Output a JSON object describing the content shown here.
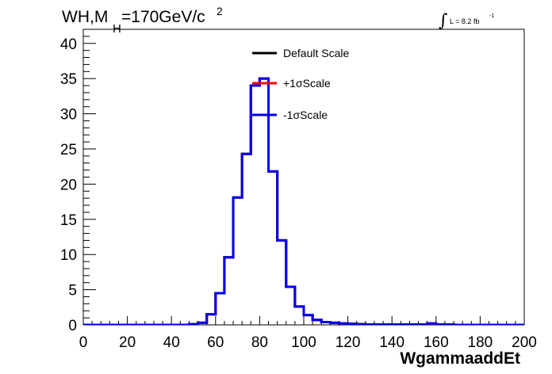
{
  "plot": {
    "title_main": "WH,M",
    "title_sub": "H",
    "title_rest": "=170GeV/c",
    "title_sup": "2",
    "lumi_integral": "∫",
    "lumi_text": "L = 8.2 fb",
    "lumi_sup": "-1"
  },
  "chart_data": {
    "type": "line",
    "style": "histogram-step",
    "title": "WH,MH=170GeV/c2",
    "xlabel": "WgammaaddEt",
    "ylabel": "",
    "xlim": [
      0,
      200
    ],
    "ylim": [
      0,
      42
    ],
    "x_ticks": [
      0,
      20,
      40,
      60,
      80,
      100,
      120,
      140,
      160,
      180,
      200
    ],
    "y_ticks": [
      0,
      5,
      10,
      15,
      20,
      25,
      30,
      35,
      40
    ],
    "bin_width": 4,
    "bin_low_edges": [
      0,
      4,
      8,
      12,
      16,
      20,
      24,
      28,
      32,
      36,
      40,
      44,
      48,
      52,
      56,
      60,
      64,
      68,
      72,
      76,
      80,
      84,
      88,
      92,
      96,
      100,
      104,
      108,
      112,
      116,
      120,
      124,
      128,
      132,
      136,
      140,
      144,
      148,
      152,
      156,
      160,
      164,
      168,
      172,
      176,
      180,
      184,
      188,
      192,
      196
    ],
    "legend": {
      "position": "top-center",
      "entries": [
        "Default Scale",
        "+1σScale",
        "-1σScale"
      ]
    },
    "series": [
      {
        "name": "Default Scale",
        "color": "#000000",
        "values": [
          0,
          0,
          0,
          0,
          0,
          0,
          0,
          0,
          0,
          0,
          0,
          0,
          0.1,
          0.3,
          1.5,
          4.5,
          9.6,
          18.1,
          24.3,
          34,
          35,
          21.8,
          12,
          5.4,
          2.6,
          1.4,
          0.7,
          0.4,
          0.3,
          0.2,
          0.15,
          0.1,
          0.05,
          0.05,
          0.05,
          0.05,
          0.05,
          0.05,
          0.05,
          0.2,
          0.05,
          0.05,
          0,
          0,
          0,
          0,
          0,
          0,
          0,
          0
        ]
      },
      {
        "name": "+1σScale",
        "color": "#ff0000",
        "values": [
          0,
          0,
          0,
          0,
          0,
          0,
          0,
          0,
          0,
          0,
          0,
          0,
          0.1,
          0.3,
          1.5,
          4.5,
          9.6,
          18.1,
          24.3,
          34,
          35,
          21.8,
          12,
          5.4,
          2.6,
          1.4,
          0.7,
          0.4,
          0.3,
          0.2,
          0.15,
          0.1,
          0.05,
          0.05,
          0.05,
          0.05,
          0.05,
          0.05,
          0.05,
          0.2,
          0.05,
          0.05,
          0,
          0,
          0,
          0,
          0,
          0,
          0,
          0
        ]
      },
      {
        "name": "-1σScale",
        "color": "#0000ee",
        "values": [
          0,
          0,
          0,
          0,
          0,
          0,
          0,
          0,
          0,
          0,
          0,
          0,
          0.1,
          0.3,
          1.5,
          4.5,
          9.6,
          18.1,
          24.3,
          34,
          35,
          21.8,
          12,
          5.4,
          2.6,
          1.4,
          0.7,
          0.4,
          0.3,
          0.2,
          0.15,
          0.1,
          0.05,
          0.05,
          0.05,
          0.05,
          0.05,
          0.05,
          0.05,
          0.2,
          0.05,
          0.05,
          0,
          0,
          0,
          0,
          0,
          0,
          0,
          0
        ]
      }
    ]
  }
}
